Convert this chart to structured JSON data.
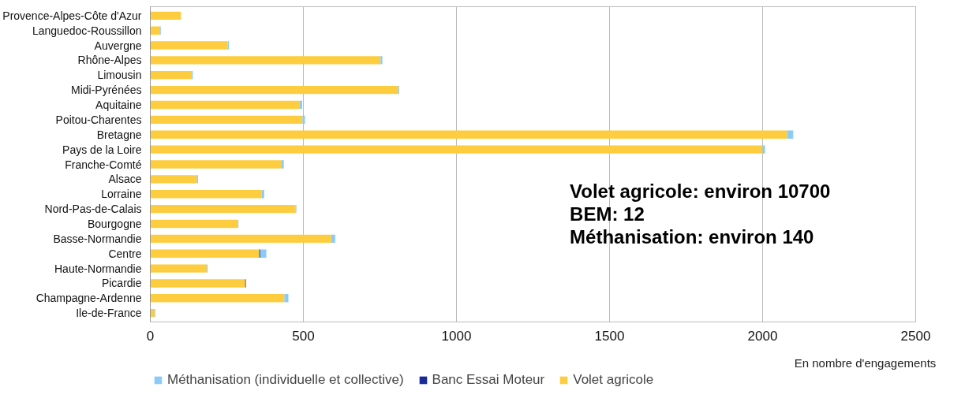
{
  "chart_data": {
    "type": "bar",
    "orientation": "horizontal",
    "stacked": true,
    "categories": [
      "Provence-Alpes-Côte d'Azur",
      "Languedoc-Roussillon",
      "Auvergne",
      "Rhône-Alpes",
      "Limousin",
      "Midi-Pyrénées",
      "Aquitaine",
      "Poitou-Charentes",
      "Bretagne",
      "Pays de la Loire",
      "Franche-Comté",
      "Alsace",
      "Lorraine",
      "Nord-Pas-de-Calais",
      "Bourgogne",
      "Basse-Normandie",
      "Centre",
      "Haute-Normandie",
      "Picardie",
      "Champagne-Ardenne",
      "Ile-de-France"
    ],
    "series": [
      {
        "name": "Volet agricole",
        "color": "#fdcd3f",
        "values": [
          100,
          33,
          253,
          752,
          136,
          810,
          488,
          497,
          2080,
          2000,
          429,
          152,
          364,
          475,
          286,
          591,
          356,
          184,
          310,
          438,
          14
        ]
      },
      {
        "name": "Banc Essai Moteur",
        "color": "#1a2a99",
        "values": [
          0,
          0,
          0,
          0,
          0,
          0,
          0,
          0,
          0,
          0,
          0,
          0,
          0,
          0,
          0,
          0,
          3,
          0,
          2,
          0,
          0
        ]
      },
      {
        "name": "Méthanisation (individuelle et collective)",
        "color": "#8ccbf7",
        "values": [
          0,
          2,
          4,
          6,
          3,
          3,
          8,
          8,
          20,
          8,
          7,
          4,
          8,
          2,
          2,
          13,
          20,
          3,
          0,
          13,
          2
        ]
      }
    ],
    "xlim": [
      0,
      2500
    ],
    "xticks": [
      0,
      500,
      1000,
      1500,
      2000,
      2500
    ],
    "xlabel": "En nombre d'engagements",
    "grid": "x",
    "legend": "bottom",
    "annotations": [
      "Volet agricole: environ 10700",
      "BEM: 12",
      "Méthanisation: environ 140"
    ]
  }
}
